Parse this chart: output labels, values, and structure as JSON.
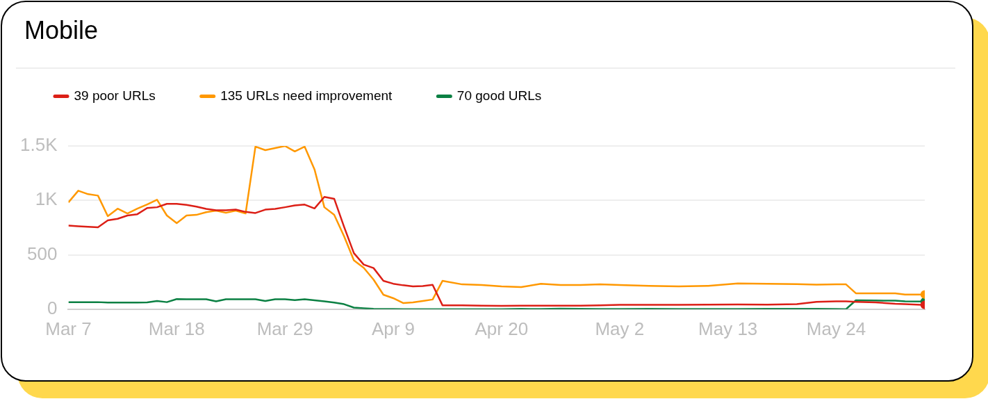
{
  "chart_data": {
    "type": "line",
    "title": "Mobile",
    "x": [
      "--03-07",
      "--03-08",
      "--03-09",
      "--03-10",
      "--03-11",
      "--03-12",
      "--03-13",
      "--03-14",
      "--03-15",
      "--03-16",
      "--03-17",
      "--03-18",
      "--03-19",
      "--03-20",
      "--03-21",
      "--03-22",
      "--03-23",
      "--03-24",
      "--03-25",
      "--03-26",
      "--03-27",
      "--03-28",
      "--03-29",
      "--03-30",
      "--03-31",
      "--04-01",
      "--04-02",
      "--04-03",
      "--04-04",
      "--04-05",
      "--04-06",
      "--04-07",
      "--04-08",
      "--04-09",
      "--04-10",
      "--04-11",
      "--04-12",
      "--04-13",
      "--04-14",
      "--04-16",
      "--04-18",
      "--04-20",
      "--04-22",
      "--04-24",
      "--04-26",
      "--04-28",
      "--04-30",
      "--05-02",
      "--05-05",
      "--05-08",
      "--05-11",
      "--05-14",
      "--05-17",
      "--05-20",
      "--05-22",
      "--05-24",
      "--05-25",
      "--05-26",
      "--05-28",
      "--05-30",
      "--05-31",
      "--06-02"
    ],
    "series": [
      {
        "name": "39 poor URLs",
        "color": "#dc1f16",
        "values": [
          768,
          762,
          758,
          753,
          816,
          831,
          861,
          873,
          930,
          937,
          968,
          968,
          958,
          943,
          922,
          909,
          909,
          915,
          894,
          884,
          915,
          922,
          937,
          954,
          961,
          926,
          1032,
          1015,
          758,
          515,
          410,
          378,
          261,
          234,
          220,
          209,
          213,
          224,
          36,
          36,
          33,
          30,
          33,
          33,
          33,
          33,
          36,
          40,
          40,
          40,
          42,
          44,
          42,
          46,
          68,
          72,
          72,
          68,
          63,
          50,
          46,
          39
        ]
      },
      {
        "name": "135 URLs need improvement",
        "color": "#ff9800",
        "values": [
          981,
          1089,
          1057,
          1044,
          855,
          924,
          880,
          924,
          962,
          1006,
          861,
          791,
          861,
          867,
          892,
          905,
          886,
          905,
          880,
          1494,
          1462,
          1481,
          1500,
          1450,
          1494,
          1285,
          937,
          867,
          671,
          449,
          380,
          272,
          133,
          101,
          57,
          63,
          76,
          89,
          260,
          228,
          222,
          209,
          203,
          234,
          222,
          222,
          228,
          222,
          215,
          209,
          215,
          236,
          234,
          230,
          225,
          228,
          228,
          146,
          146,
          146,
          135,
          135
        ]
      },
      {
        "name": "70 good URLs",
        "color": "#0b8043",
        "values": [
          65,
          65,
          65,
          65,
          61,
          61,
          61,
          61,
          63,
          76,
          65,
          93,
          91,
          91,
          91,
          72,
          91,
          91,
          91,
          91,
          76,
          91,
          91,
          84,
          91,
          82,
          72,
          61,
          46,
          15,
          8,
          3,
          2,
          2,
          1,
          1,
          1,
          1,
          1,
          1,
          1,
          1,
          3,
          2,
          5,
          3,
          2,
          2,
          3,
          2,
          2,
          2,
          3,
          3,
          3,
          2,
          0,
          82,
          80,
          78,
          72,
          70
        ]
      }
    ],
    "xlim": [
      "--03-07",
      "--06-02"
    ],
    "xticks": [
      {
        "value": "--03-07",
        "label": "Mar 7"
      },
      {
        "value": "--03-18",
        "label": "Mar 18"
      },
      {
        "value": "--03-29",
        "label": "Mar 29"
      },
      {
        "value": "--04-09",
        "label": "Apr 9"
      },
      {
        "value": "--04-20",
        "label": "Apr 20"
      },
      {
        "value": "--05-02",
        "label": "May 2"
      },
      {
        "value": "--05-13",
        "label": "May 13"
      },
      {
        "value": "--05-24",
        "label": "May 24"
      }
    ],
    "ylim": [
      0,
      1500
    ],
    "yticks": [
      0,
      500,
      {
        "value": 1000,
        "label": "1K"
      },
      {
        "value": 1500,
        "label": "1.5K"
      }
    ],
    "grid": "y",
    "legend": "top left"
  }
}
